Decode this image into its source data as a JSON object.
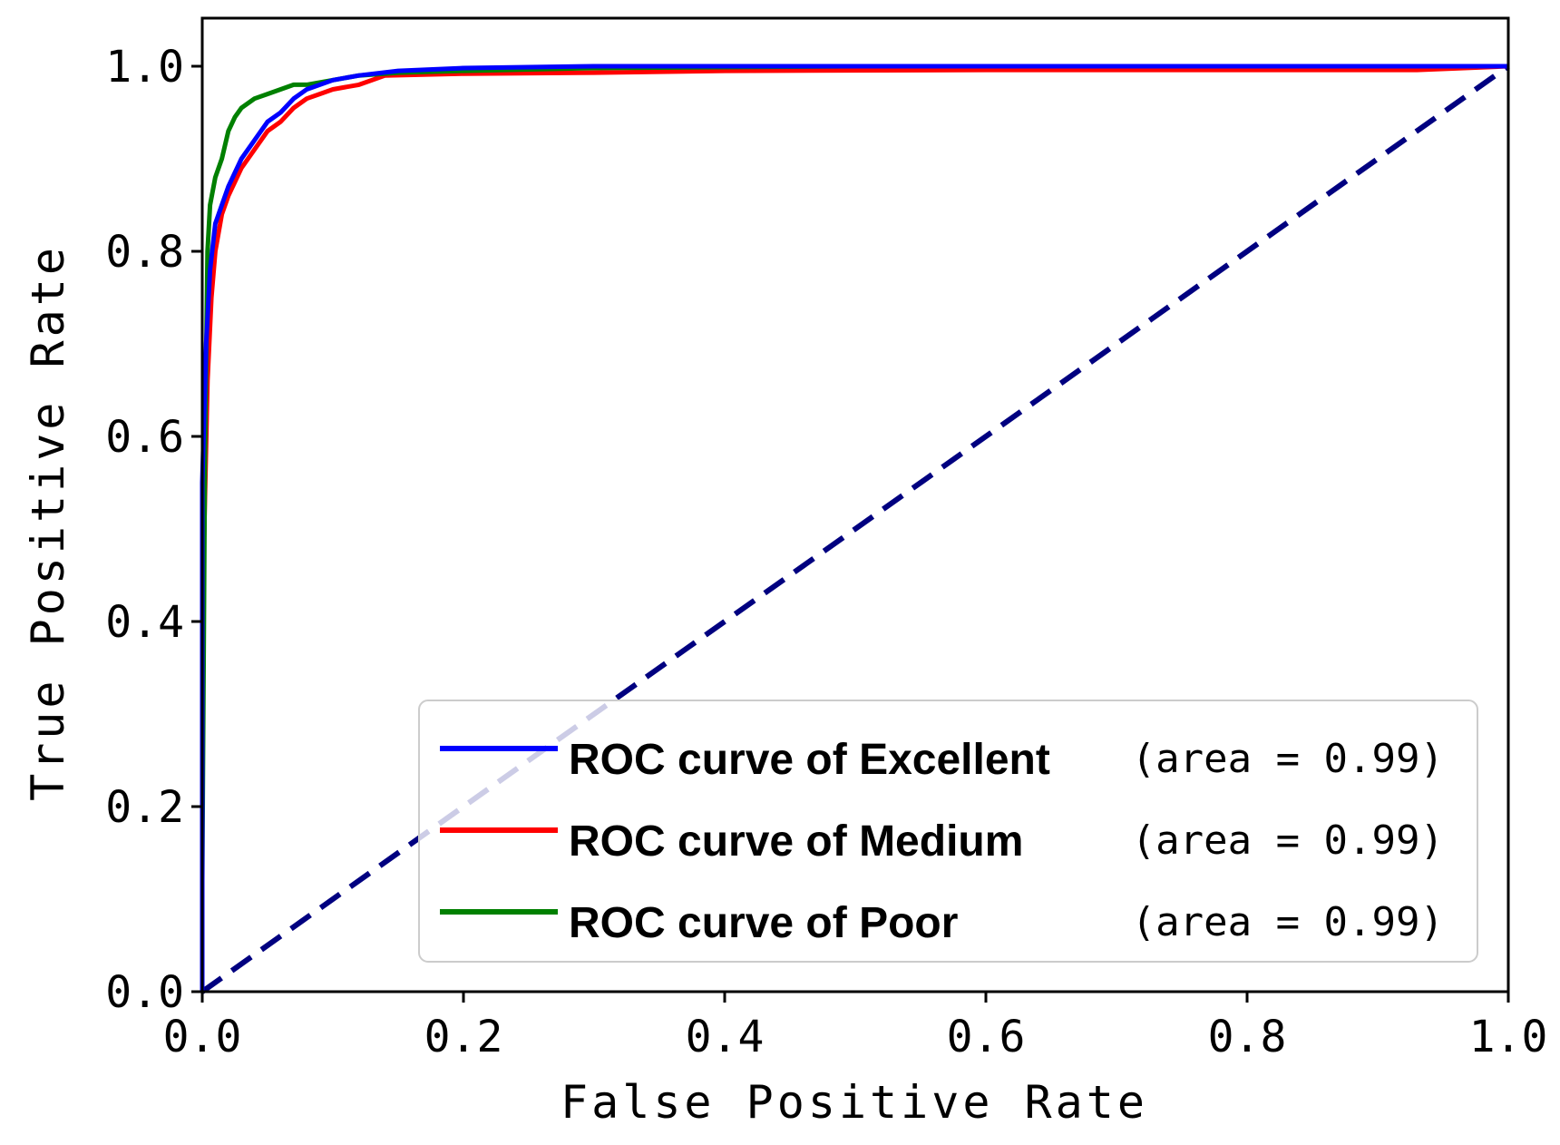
{
  "chart_data": {
    "type": "line",
    "title": "",
    "xlabel": "False Positive Rate",
    "ylabel": "True Positive Rate",
    "xlim": [
      0.0,
      1.0
    ],
    "ylim": [
      0.0,
      1.0
    ],
    "x_ticks": [
      "0.0",
      "0.2",
      "0.4",
      "0.6",
      "0.8",
      "1.0"
    ],
    "y_ticks": [
      "0.0",
      "0.2",
      "0.4",
      "0.6",
      "0.8",
      "1.0"
    ],
    "grid": false,
    "legend_position": "lower-right",
    "series": [
      {
        "name": "ROC curve of Excellent",
        "area_label": "(area = 0.99)",
        "color": "#0000ff",
        "x": [
          0.0,
          0.0,
          0.003,
          0.006,
          0.01,
          0.015,
          0.02,
          0.03,
          0.04,
          0.05,
          0.06,
          0.07,
          0.08,
          0.1,
          0.12,
          0.15,
          0.2,
          0.3,
          0.4,
          0.6,
          0.8,
          1.0
        ],
        "y": [
          0.0,
          0.55,
          0.7,
          0.78,
          0.83,
          0.85,
          0.87,
          0.9,
          0.92,
          0.94,
          0.95,
          0.965,
          0.975,
          0.985,
          0.99,
          0.995,
          0.998,
          1.0,
          1.0,
          1.0,
          1.0,
          1.0
        ]
      },
      {
        "name": "ROC curve of Medium",
        "area_label": "(area = 0.99)",
        "color": "#ff0000",
        "x": [
          0.0,
          0.0,
          0.004,
          0.007,
          0.01,
          0.015,
          0.02,
          0.03,
          0.04,
          0.05,
          0.06,
          0.07,
          0.08,
          0.09,
          0.1,
          0.12,
          0.14,
          0.2,
          0.3,
          0.4,
          0.6,
          0.8,
          0.93,
          1.0
        ],
        "y": [
          0.0,
          0.4,
          0.66,
          0.75,
          0.8,
          0.84,
          0.86,
          0.89,
          0.91,
          0.93,
          0.94,
          0.955,
          0.965,
          0.97,
          0.975,
          0.98,
          0.99,
          0.992,
          0.993,
          0.995,
          0.996,
          0.996,
          0.996,
          1.0
        ]
      },
      {
        "name": "ROC curve of Poor",
        "area_label": "(area = 0.99)",
        "color": "#008000",
        "x": [
          0.0,
          0.0,
          0.002,
          0.004,
          0.006,
          0.01,
          0.015,
          0.02,
          0.025,
          0.03,
          0.04,
          0.05,
          0.06,
          0.07,
          0.08,
          0.1,
          0.12,
          0.15,
          0.2,
          0.3,
          0.5,
          0.8,
          1.0
        ],
        "y": [
          0.0,
          0.12,
          0.57,
          0.8,
          0.85,
          0.88,
          0.9,
          0.93,
          0.945,
          0.955,
          0.965,
          0.97,
          0.975,
          0.98,
          0.98,
          0.985,
          0.99,
          0.993,
          0.995,
          0.998,
          1.0,
          1.0,
          1.0
        ]
      },
      {
        "name": "",
        "color": "#000080",
        "dashed": true,
        "x": [
          0.0,
          1.0
        ],
        "y": [
          0.0,
          1.0
        ]
      }
    ]
  }
}
